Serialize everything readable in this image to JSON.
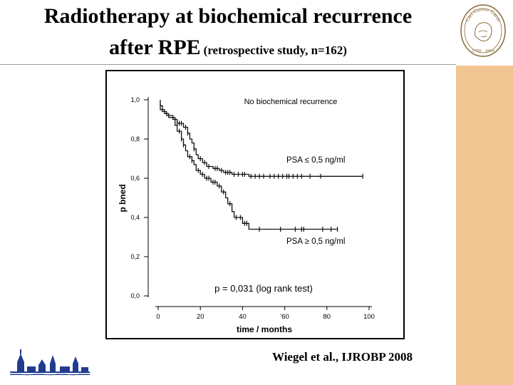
{
  "slide": {
    "title_line1": "Radiotherapy at biochemical recurrence",
    "title_line2_main": "after RPE",
    "title_line2_sub": "(retrospective study, n=162)",
    "citation": "Wiegel et al., IJROBP 2008"
  },
  "colors": {
    "sidebar": "#f1c592",
    "logo_blue": "#223b8f",
    "seal_brown": "#8a6a3a"
  },
  "logo": {
    "seal_text": "Carl Gustav Carus",
    "seal_years": "1789 · 1869",
    "seal_icon": "portrait-seal-icon",
    "skyline_icon": "dresden-skyline-icon"
  },
  "chart_data": {
    "type": "line",
    "subtype": "kaplan-meier step",
    "title": "No biochemical recurrence",
    "xlabel": "time / months",
    "ylabel": "p bned",
    "xlim": [
      0,
      100
    ],
    "ylim": [
      0,
      1.0
    ],
    "xticks": [
      0,
      20,
      40,
      60,
      80,
      100
    ],
    "xtick_labels": [
      "0",
      "20",
      "40",
      "'60",
      "80",
      "100"
    ],
    "yticks": [
      0,
      0.2,
      0.4,
      0.6,
      0.8,
      1.0
    ],
    "ytick_labels": [
      "0,0",
      "0,2",
      "0,4",
      "0,6",
      "0,8",
      "1,0"
    ],
    "annotation": "p = 0,031 (log rank test)",
    "series": [
      {
        "name": "PSA ≤ 0,5 ng/ml",
        "points": [
          [
            1,
            1.0
          ],
          [
            1,
            0.97
          ],
          [
            2,
            0.97
          ],
          [
            2,
            0.94
          ],
          [
            4,
            0.94
          ],
          [
            4,
            0.92
          ],
          [
            7,
            0.92
          ],
          [
            7,
            0.9
          ],
          [
            9,
            0.9
          ],
          [
            9,
            0.88
          ],
          [
            12,
            0.88
          ],
          [
            12,
            0.86
          ],
          [
            14,
            0.86
          ],
          [
            14,
            0.83
          ],
          [
            15,
            0.83
          ],
          [
            15,
            0.8
          ],
          [
            16,
            0.8
          ],
          [
            16,
            0.78
          ],
          [
            17,
            0.78
          ],
          [
            17,
            0.75
          ],
          [
            18,
            0.75
          ],
          [
            18,
            0.72
          ],
          [
            19,
            0.72
          ],
          [
            19,
            0.7
          ],
          [
            21,
            0.7
          ],
          [
            21,
            0.68
          ],
          [
            23,
            0.68
          ],
          [
            23,
            0.66
          ],
          [
            26,
            0.66
          ],
          [
            26,
            0.65
          ],
          [
            29,
            0.65
          ],
          [
            29,
            0.64
          ],
          [
            31,
            0.64
          ],
          [
            31,
            0.63
          ],
          [
            35,
            0.63
          ],
          [
            35,
            0.62
          ],
          [
            43,
            0.62
          ],
          [
            43,
            0.61
          ],
          [
            97,
            0.61
          ]
        ],
        "censor_times": [
          9,
          10,
          11,
          13,
          14,
          17,
          20,
          22,
          24,
          27,
          28,
          30,
          32,
          33,
          34,
          36,
          38,
          40,
          41,
          44,
          46,
          48,
          50,
          53,
          55,
          57,
          59,
          61,
          62,
          64,
          66,
          68,
          72,
          77,
          97
        ]
      },
      {
        "name": "PSA ≥ 0,5 ng/ml",
        "points": [
          [
            1,
            0.98
          ],
          [
            1,
            0.95
          ],
          [
            3,
            0.95
          ],
          [
            3,
            0.93
          ],
          [
            5,
            0.93
          ],
          [
            5,
            0.91
          ],
          [
            8,
            0.91
          ],
          [
            8,
            0.87
          ],
          [
            9,
            0.87
          ],
          [
            9,
            0.84
          ],
          [
            11,
            0.84
          ],
          [
            11,
            0.8
          ],
          [
            12,
            0.8
          ],
          [
            12,
            0.77
          ],
          [
            13,
            0.77
          ],
          [
            13,
            0.74
          ],
          [
            14,
            0.74
          ],
          [
            14,
            0.71
          ],
          [
            16,
            0.71
          ],
          [
            16,
            0.69
          ],
          [
            17,
            0.69
          ],
          [
            17,
            0.67
          ],
          [
            18,
            0.67
          ],
          [
            18,
            0.64
          ],
          [
            20,
            0.64
          ],
          [
            20,
            0.62
          ],
          [
            22,
            0.62
          ],
          [
            22,
            0.6
          ],
          [
            25,
            0.6
          ],
          [
            25,
            0.58
          ],
          [
            28,
            0.58
          ],
          [
            28,
            0.56
          ],
          [
            30,
            0.56
          ],
          [
            30,
            0.53
          ],
          [
            32,
            0.53
          ],
          [
            32,
            0.5
          ],
          [
            33,
            0.5
          ],
          [
            33,
            0.47
          ],
          [
            35,
            0.47
          ],
          [
            35,
            0.43
          ],
          [
            36,
            0.43
          ],
          [
            36,
            0.4
          ],
          [
            40,
            0.4
          ],
          [
            40,
            0.37
          ],
          [
            43,
            0.37
          ],
          [
            43,
            0.34
          ],
          [
            85,
            0.34
          ]
        ],
        "censor_times": [
          10,
          11,
          12,
          15,
          16,
          19,
          21,
          23,
          24,
          26,
          27,
          29,
          31,
          34,
          37,
          39,
          41,
          42,
          48,
          58,
          65,
          68,
          69,
          78,
          82,
          85
        ]
      }
    ]
  }
}
